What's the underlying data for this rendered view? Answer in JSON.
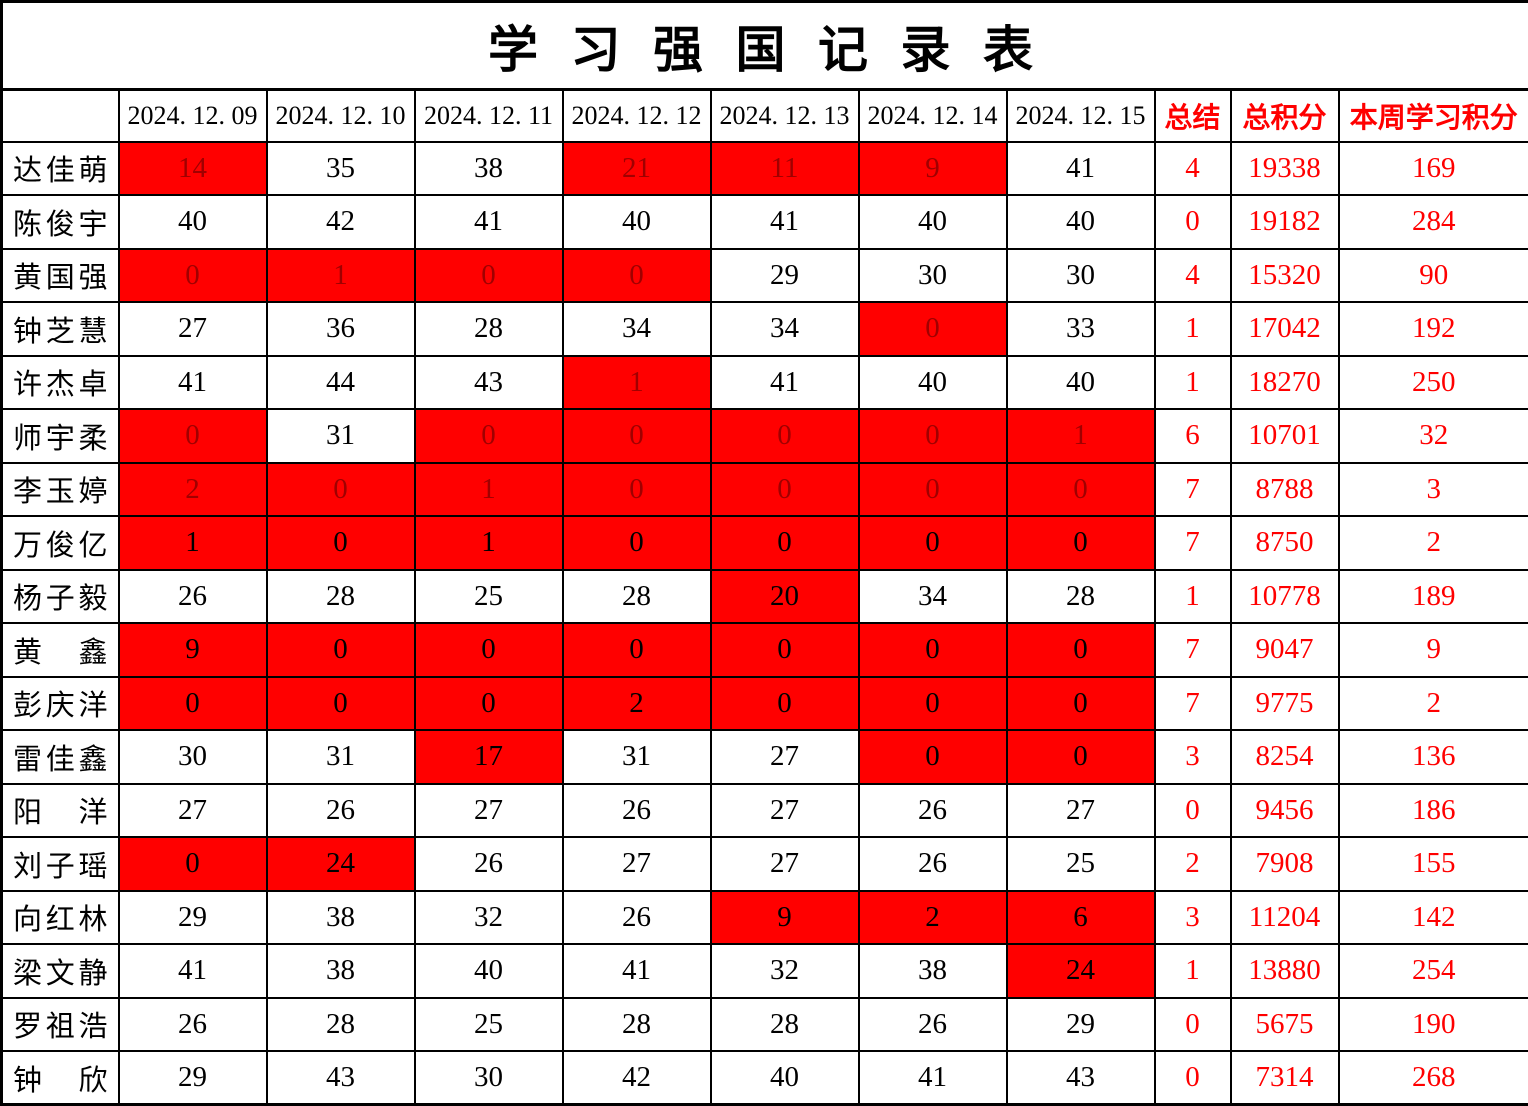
{
  "title": "学 习 强 国 记 录 表",
  "colors": {
    "highlight_cell_background": "#ff0000",
    "accent_red_text": "#ff0000",
    "dark_red_cell_text": "#a00000",
    "default_text": "#000000",
    "grid_border": "#000000"
  },
  "table": {
    "name_header": "",
    "date_headers": [
      "2024. 12. 09",
      "2024. 12. 10",
      "2024. 12. 11",
      "2024. 12. 12",
      "2024. 12. 13",
      "2024. 12. 14",
      "2024. 12. 15"
    ],
    "summary_headers": [
      "总结",
      "总积分",
      "本周学习积分"
    ],
    "rows": [
      {
        "name": "达佳萌",
        "days": [
          "14",
          "35",
          "38",
          "21",
          "11",
          "9",
          "41"
        ],
        "red": [
          1,
          0,
          0,
          1,
          1,
          1,
          0
        ],
        "red_text": "dark",
        "summary": "4",
        "total": "19338",
        "week": "169"
      },
      {
        "name": "陈俊宇",
        "days": [
          "40",
          "42",
          "41",
          "40",
          "41",
          "40",
          "40"
        ],
        "red": [
          0,
          0,
          0,
          0,
          0,
          0,
          0
        ],
        "red_text": "dark",
        "summary": "0",
        "total": "19182",
        "week": "284"
      },
      {
        "name": "黄国强",
        "days": [
          "0",
          "1",
          "0",
          "0",
          "29",
          "30",
          "30"
        ],
        "red": [
          1,
          1,
          1,
          1,
          0,
          0,
          0
        ],
        "red_text": "dark",
        "summary": "4",
        "total": "15320",
        "week": "90"
      },
      {
        "name": "钟芝慧",
        "days": [
          "27",
          "36",
          "28",
          "34",
          "34",
          "0",
          "33"
        ],
        "red": [
          0,
          0,
          0,
          0,
          0,
          1,
          0
        ],
        "red_text": "dark",
        "summary": "1",
        "total": "17042",
        "week": "192"
      },
      {
        "name": "许杰卓",
        "days": [
          "41",
          "44",
          "43",
          "1",
          "41",
          "40",
          "40"
        ],
        "red": [
          0,
          0,
          0,
          1,
          0,
          0,
          0
        ],
        "red_text": "dark",
        "summary": "1",
        "total": "18270",
        "week": "250"
      },
      {
        "name": "师宇柔",
        "days": [
          "0",
          "31",
          "0",
          "0",
          "0",
          "0",
          "1"
        ],
        "red": [
          1,
          0,
          1,
          1,
          1,
          1,
          1
        ],
        "red_text": "dark",
        "summary": "6",
        "total": "10701",
        "week": "32"
      },
      {
        "name": "李玉婷",
        "days": [
          "2",
          "0",
          "1",
          "0",
          "0",
          "0",
          "0"
        ],
        "red": [
          1,
          1,
          1,
          1,
          1,
          1,
          1
        ],
        "red_text": "dark",
        "summary": "7",
        "total": "8788",
        "week": "3"
      },
      {
        "name": "万俊亿",
        "days": [
          "1",
          "0",
          "1",
          "0",
          "0",
          "0",
          "0"
        ],
        "red": [
          1,
          1,
          1,
          1,
          1,
          1,
          1
        ],
        "red_text": "black",
        "summary": "7",
        "total": "8750",
        "week": "2"
      },
      {
        "name": "杨子毅",
        "days": [
          "26",
          "28",
          "25",
          "28",
          "20",
          "34",
          "28"
        ],
        "red": [
          0,
          0,
          0,
          0,
          1,
          0,
          0
        ],
        "red_text": "black",
        "summary": "1",
        "total": "10778",
        "week": "189"
      },
      {
        "name": "黄鑫",
        "days": [
          "9",
          "0",
          "0",
          "0",
          "0",
          "0",
          "0"
        ],
        "red": [
          1,
          1,
          1,
          1,
          1,
          1,
          1
        ],
        "red_text": "black",
        "summary": "7",
        "total": "9047",
        "week": "9"
      },
      {
        "name": "彭庆洋",
        "days": [
          "0",
          "0",
          "0",
          "2",
          "0",
          "0",
          "0"
        ],
        "red": [
          1,
          1,
          1,
          1,
          1,
          1,
          1
        ],
        "red_text": "black",
        "summary": "7",
        "total": "9775",
        "week": "2"
      },
      {
        "name": "雷佳鑫",
        "days": [
          "30",
          "31",
          "17",
          "31",
          "27",
          "0",
          "0"
        ],
        "red": [
          0,
          0,
          1,
          0,
          0,
          1,
          1
        ],
        "red_text": "black",
        "summary": "3",
        "total": "8254",
        "week": "136"
      },
      {
        "name": "阳洋",
        "days": [
          "27",
          "26",
          "27",
          "26",
          "27",
          "26",
          "27"
        ],
        "red": [
          0,
          0,
          0,
          0,
          0,
          0,
          0
        ],
        "red_text": "black",
        "summary": "0",
        "total": "9456",
        "week": "186"
      },
      {
        "name": "刘子瑶",
        "days": [
          "0",
          "24",
          "26",
          "27",
          "27",
          "26",
          "25"
        ],
        "red": [
          1,
          1,
          0,
          0,
          0,
          0,
          0
        ],
        "red_text": "black",
        "summary": "2",
        "total": "7908",
        "week": "155"
      },
      {
        "name": "向红林",
        "days": [
          "29",
          "38",
          "32",
          "26",
          "9",
          "2",
          "6"
        ],
        "red": [
          0,
          0,
          0,
          0,
          1,
          1,
          1
        ],
        "red_text": "black",
        "summary": "3",
        "total": "11204",
        "week": "142"
      },
      {
        "name": "梁文静",
        "days": [
          "41",
          "38",
          "40",
          "41",
          "32",
          "38",
          "24"
        ],
        "red": [
          0,
          0,
          0,
          0,
          0,
          0,
          1
        ],
        "red_text": "black",
        "summary": "1",
        "total": "13880",
        "week": "254"
      },
      {
        "name": "罗祖浩",
        "days": [
          "26",
          "28",
          "25",
          "28",
          "28",
          "26",
          "29"
        ],
        "red": [
          0,
          0,
          0,
          0,
          0,
          0,
          0
        ],
        "red_text": "black",
        "summary": "0",
        "total": "5675",
        "week": "190"
      },
      {
        "name": "钟欣",
        "days": [
          "29",
          "43",
          "30",
          "42",
          "40",
          "41",
          "43"
        ],
        "red": [
          0,
          0,
          0,
          0,
          0,
          0,
          0
        ],
        "red_text": "black",
        "summary": "0",
        "total": "7314",
        "week": "268"
      }
    ]
  }
}
